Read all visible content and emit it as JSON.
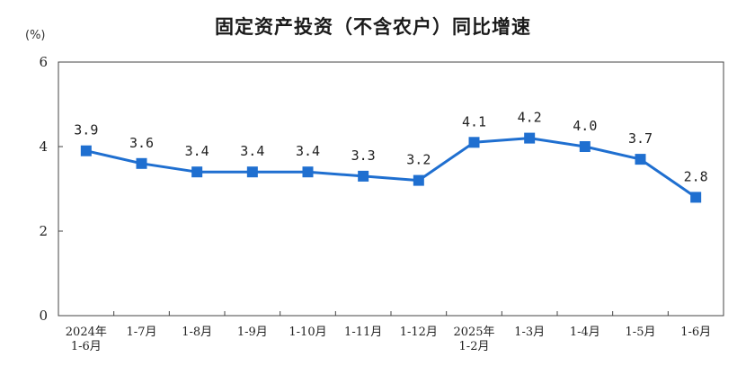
{
  "colors": {
    "series": "#1f6fd0",
    "axis": "#444444",
    "background": "#ffffff"
  },
  "chart_data": {
    "type": "line",
    "title": "固定资产投资（不含农户）同比增速",
    "unit": "(%)",
    "xlabel": "",
    "ylabel": "",
    "ylim": [
      0,
      6
    ],
    "yticks": [
      "0",
      "2",
      "4",
      "6"
    ],
    "grid": false,
    "legend": "none",
    "categories": [
      [
        "2024年",
        "1-6月"
      ],
      [
        "1-7月"
      ],
      [
        "1-8月"
      ],
      [
        "1-9月"
      ],
      [
        "1-10月"
      ],
      [
        "1-11月"
      ],
      [
        "1-12月"
      ],
      [
        "2025年",
        "1-2月"
      ],
      [
        "1-3月"
      ],
      [
        "1-4月"
      ],
      [
        "1-5月"
      ],
      [
        "1-6月"
      ]
    ],
    "series": [
      {
        "values": [
          3.9,
          3.6,
          3.4,
          3.4,
          3.4,
          3.3,
          3.2,
          4.1,
          4.2,
          4.0,
          3.7,
          2.8
        ],
        "labels": [
          "3.9",
          "3.6",
          "3.4",
          "3.4",
          "3.4",
          "3.3",
          "3.2",
          "4.1",
          "4.2",
          "4.0",
          "3.7",
          "2.8"
        ]
      }
    ]
  }
}
